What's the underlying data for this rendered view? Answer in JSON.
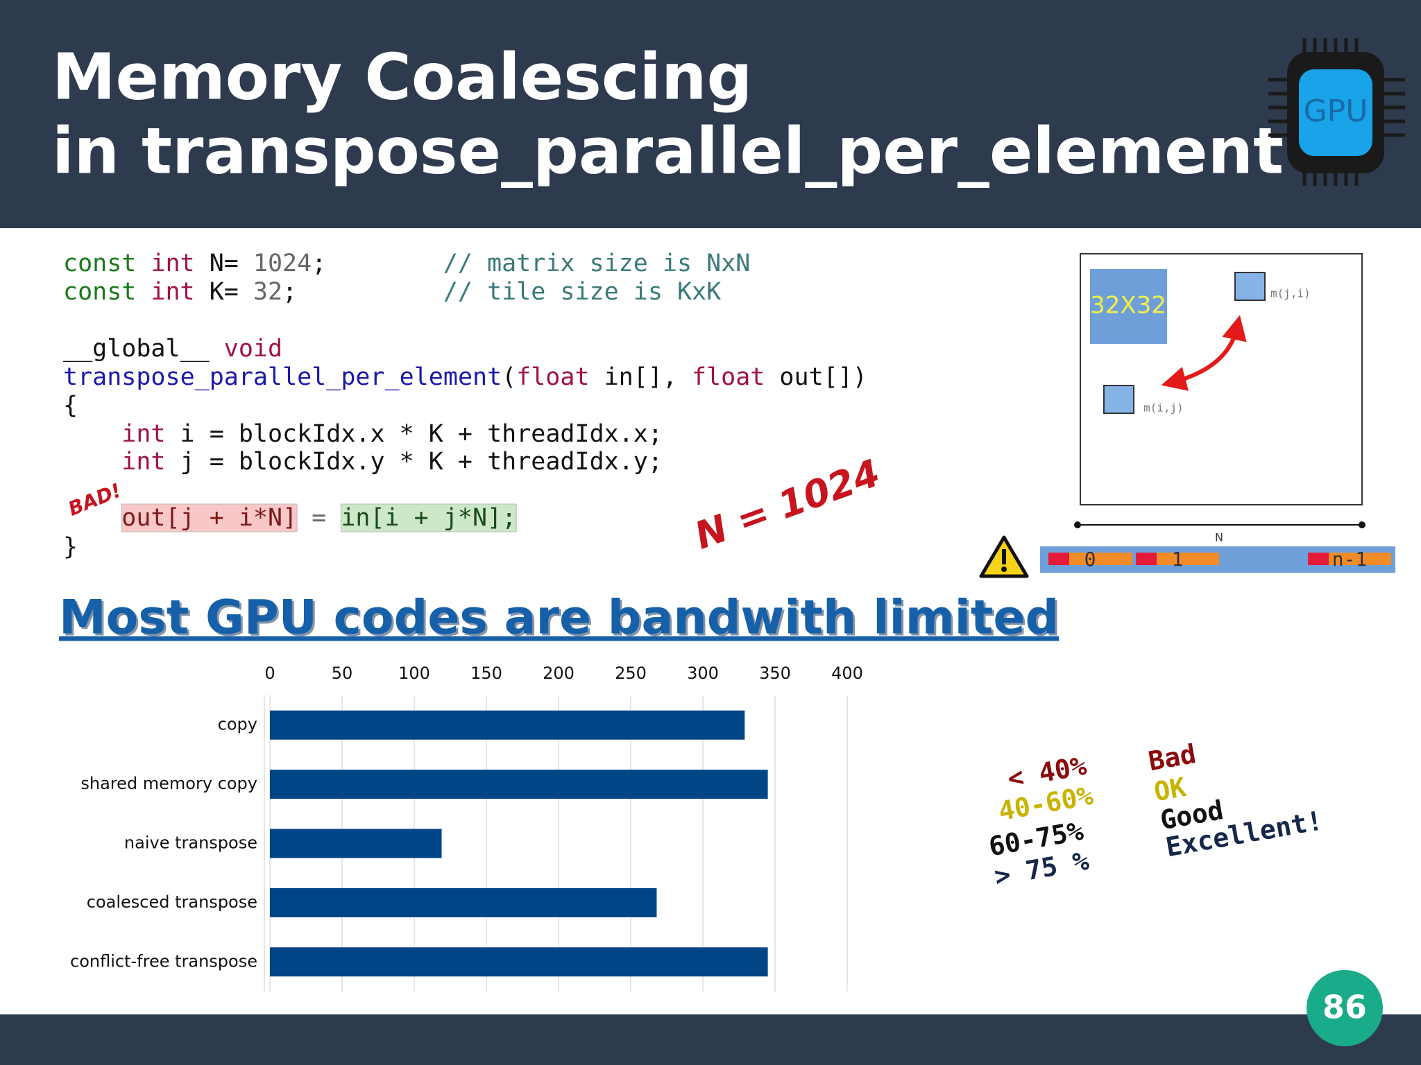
{
  "header": {
    "title_lines": [
      "Memory Coalescing",
      "in transpose_parallel_per_element"
    ],
    "logo_text": "GPU"
  },
  "code": {
    "lines": [
      [
        {
          "text": "const",
          "color": "#1a7a1a"
        },
        {
          "text": " int",
          "color": "#a0104a"
        },
        {
          "text": " N= ",
          "color": "#111111"
        },
        {
          "text": "1024",
          "color": "#666666"
        },
        {
          "text": ";",
          "color": "#111111"
        },
        {
          "text": "        // matrix size is NxN",
          "color": "#3a7a7a"
        }
      ],
      [
        {
          "text": "const",
          "color": "#1a7a1a"
        },
        {
          "text": " int",
          "color": "#a0104a"
        },
        {
          "text": " K= ",
          "color": "#111111"
        },
        {
          "text": "32",
          "color": "#666666"
        },
        {
          "text": ";",
          "color": "#111111"
        },
        {
          "text": "          // tile size is KxK",
          "color": "#3a7a7a"
        }
      ],
      [
        {
          "text": "__global__ ",
          "color": "#111111"
        },
        {
          "text": "void",
          "color": "#a0104a"
        }
      ],
      [
        {
          "text": "transpose_parallel_per_element",
          "color": "#1a1aaa"
        },
        {
          "text": "(",
          "color": "#111111"
        },
        {
          "text": "float",
          "color": "#a0104a"
        },
        {
          "text": " in[], ",
          "color": "#111111"
        },
        {
          "text": "float",
          "color": "#a0104a"
        },
        {
          "text": " out[])",
          "color": "#111111"
        }
      ],
      [
        {
          "text": "{",
          "color": "#111111"
        }
      ],
      [
        {
          "text": "    int",
          "color": "#a0104a"
        },
        {
          "text": " i = blockIdx.x * K + threadIdx.x;",
          "color": "#111111"
        }
      ],
      [
        {
          "text": "    int",
          "color": "#a0104a"
        },
        {
          "text": " j = blockIdx.y * K + threadIdx.y;",
          "color": "#111111"
        }
      ],
      [
        {
          "text": "    out[j + i*N]",
          "color": "#7a1a1a",
          "background": "#f8c8c8"
        },
        {
          "text": " = ",
          "color": "#666666"
        },
        {
          "text": "in[i + j*N];",
          "color": "#1a4a1a",
          "background": "#cce8c8"
        }
      ],
      [
        {
          "text": "}",
          "color": "#111111"
        }
      ]
    ]
  },
  "bad_label": "BAD!",
  "n_label": "N = 1024",
  "diagram": {
    "tile_label": "32X32",
    "target_label": "m(j,i)",
    "source_label": "m(i,j)",
    "axis_label": "N",
    "memory_labels": [
      "0",
      "1",
      "n-1"
    ]
  },
  "heading": "Most GPU codes are bandwith limited",
  "chart_data": {
    "type": "bar",
    "orientation": "horizontal",
    "categories": [
      "copy",
      "shared memory copy",
      "naive transpose",
      "coalesced transpose",
      "conflict-free transpose"
    ],
    "values": [
      329,
      345,
      119,
      268,
      345
    ],
    "color": "#004586",
    "xlim": [
      0,
      400
    ],
    "xticks": [
      0,
      50,
      100,
      150,
      200,
      250,
      300,
      350,
      400
    ],
    "grid": true
  },
  "rating": {
    "ranges": [
      {
        "text": "< 40%",
        "color": "#8b0a0a"
      },
      {
        "text": "40-60%",
        "color": "#c8b400"
      },
      {
        "text": "60-75%",
        "color": "#111111"
      },
      {
        "text": "> 75 %",
        "color": "#15284a"
      }
    ],
    "grades": [
      {
        "text": "Bad",
        "color": "#8b0a0a"
      },
      {
        "text": "OK",
        "color": "#c8b400"
      },
      {
        "text": "Good",
        "color": "#111111"
      },
      {
        "text": "Excellent!",
        "color": "#15284a"
      }
    ]
  },
  "page_number": "86"
}
